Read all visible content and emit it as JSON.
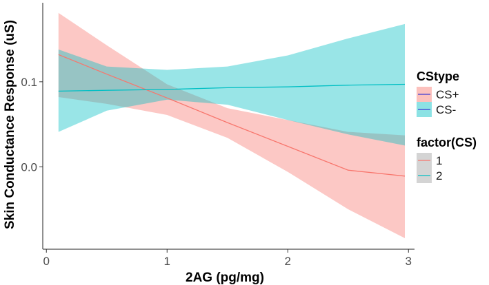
{
  "chart_data": {
    "type": "line",
    "xlabel": "2AG (pg/mg)",
    "ylabel": "Skin Conductance Response (uS)",
    "xlim": [
      -0.03,
      3.05
    ],
    "ylim": [
      -0.097,
      0.193
    ],
    "x_ticks": [
      0,
      1,
      2,
      3
    ],
    "x_tick_labels": [
      "0",
      "1",
      "2",
      "3"
    ],
    "y_ticks": [
      0.0,
      0.1
    ],
    "y_tick_labels": [
      "0.0",
      "0.1"
    ],
    "grid": false,
    "legend_position": "right",
    "legends": [
      {
        "title": "CStype",
        "entries": [
          {
            "label": "CS+",
            "color": "#3B3BD4"
          },
          {
            "label": "CS-",
            "color": "#3B3BD4"
          }
        ]
      },
      {
        "title": "factor(CS)",
        "entries": [
          {
            "label": "1",
            "color": "#F8766D"
          },
          {
            "label": "2",
            "color": "#00BFC4"
          }
        ]
      }
    ],
    "series": [
      {
        "color": "#F8766D",
        "band_color": "#F8766D",
        "x": [
          0.1,
          0.5,
          1.0,
          1.5,
          2.0,
          2.5,
          2.97
        ],
        "y": [
          0.132,
          0.109,
          0.081,
          0.052,
          0.024,
          -0.004,
          -0.011
        ],
        "lower": [
          0.082,
          0.074,
          0.061,
          0.034,
          -0.006,
          -0.05,
          -0.084
        ],
        "upper": [
          0.181,
          0.143,
          0.097,
          0.069,
          0.055,
          0.041,
          0.037
        ]
      },
      {
        "color": "#00BFC4",
        "band_color": "#00BFC4",
        "x": [
          0.1,
          0.5,
          1.0,
          1.5,
          2.0,
          2.5,
          2.97
        ],
        "y": [
          0.089,
          0.09,
          0.091,
          0.093,
          0.094,
          0.096,
          0.097
        ],
        "lower": [
          0.041,
          0.066,
          0.079,
          0.073,
          0.055,
          0.038,
          0.025
        ],
        "upper": [
          0.138,
          0.118,
          0.114,
          0.118,
          0.131,
          0.151,
          0.168
        ]
      }
    ]
  }
}
